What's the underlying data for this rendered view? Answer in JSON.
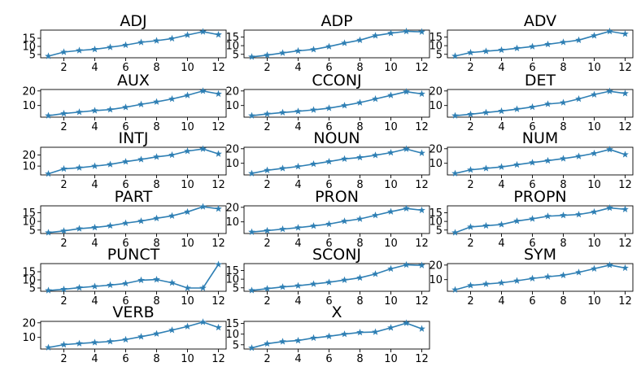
{
  "style": {
    "line_color": "#2e7fb4",
    "marker": "star"
  },
  "chart_data": [
    {
      "type": "line",
      "title": "ADJ",
      "x": [
        1,
        2,
        3,
        4,
        5,
        6,
        7,
        8,
        9,
        10,
        11,
        12
      ],
      "values": [
        4,
        6.5,
        7.5,
        8.2,
        9.5,
        10.8,
        12.5,
        13.5,
        14.8,
        17,
        19,
        17.2
      ],
      "yticks": [
        5,
        10,
        15
      ],
      "ylim": [
        3,
        20
      ],
      "xticks": [
        2,
        4,
        6,
        8,
        10,
        12
      ]
    },
    {
      "type": "line",
      "title": "ADP",
      "x": [
        1,
        2,
        3,
        4,
        5,
        6,
        7,
        8,
        9,
        10,
        11,
        12
      ],
      "values": [
        3.5,
        4.5,
        5.8,
        7,
        7.8,
        9.5,
        11.5,
        13.2,
        15.8,
        17.2,
        18.3,
        18
      ],
      "yticks": [
        5,
        10,
        15
      ],
      "ylim": [
        3,
        19
      ],
      "xticks": [
        2,
        4,
        6,
        8,
        10,
        12
      ]
    },
    {
      "type": "line",
      "title": "ADV",
      "x": [
        1,
        2,
        3,
        4,
        5,
        6,
        7,
        8,
        9,
        10,
        11,
        12
      ],
      "values": [
        4,
        6,
        6.8,
        7.5,
        8.5,
        9.5,
        10.8,
        12,
        13.2,
        15.8,
        18.3,
        16.8
      ],
      "yticks": [
        5,
        10,
        15
      ],
      "ylim": [
        3,
        19
      ],
      "xticks": [
        2,
        4,
        6,
        8,
        10,
        12
      ]
    },
    {
      "type": "line",
      "title": "AUX",
      "x": [
        1,
        2,
        3,
        4,
        5,
        6,
        7,
        8,
        9,
        10,
        11,
        12
      ],
      "values": [
        3,
        4.5,
        5.5,
        6.5,
        7.2,
        8.8,
        10.8,
        12.5,
        14.5,
        17,
        20,
        18
      ],
      "yticks": [
        10,
        20
      ],
      "ylim": [
        2,
        21
      ],
      "xticks": [
        2,
        4,
        6,
        8,
        10,
        12
      ]
    },
    {
      "type": "line",
      "title": "CCONJ",
      "x": [
        1,
        2,
        3,
        4,
        5,
        6,
        7,
        8,
        9,
        10,
        11,
        12
      ],
      "values": [
        3,
        4.2,
        5.2,
        6,
        7,
        8.2,
        10,
        12,
        14.5,
        17,
        19.5,
        18
      ],
      "yticks": [
        10,
        20
      ],
      "ylim": [
        2,
        21
      ],
      "xticks": [
        2,
        4,
        6,
        8,
        10,
        12
      ]
    },
    {
      "type": "line",
      "title": "DET",
      "x": [
        1,
        2,
        3,
        4,
        5,
        6,
        7,
        8,
        9,
        10,
        11,
        12
      ],
      "values": [
        3,
        4,
        5.2,
        6.2,
        7.5,
        9,
        11,
        12,
        14.5,
        17.5,
        19.8,
        18.3
      ],
      "yticks": [
        10,
        20
      ],
      "ylim": [
        2,
        21
      ],
      "xticks": [
        2,
        4,
        6,
        8,
        10,
        12
      ]
    },
    {
      "type": "line",
      "title": "INTJ",
      "x": [
        1,
        2,
        3,
        4,
        5,
        6,
        7,
        8,
        9,
        10,
        11,
        12
      ],
      "values": [
        3,
        7.5,
        8.5,
        10,
        11.5,
        14,
        16,
        18.3,
        20,
        23.5,
        25.5,
        21
      ],
      "yticks": [
        10,
        20
      ],
      "ylim": [
        2,
        27
      ],
      "xticks": [
        2,
        4,
        6,
        8,
        10,
        12
      ]
    },
    {
      "type": "line",
      "title": "NOUN",
      "x": [
        1,
        2,
        3,
        4,
        5,
        6,
        7,
        8,
        9,
        10,
        11,
        12
      ],
      "values": [
        3,
        5.2,
        6.5,
        7.8,
        9.5,
        11.2,
        13,
        14,
        15.5,
        17.3,
        19.8,
        17
      ],
      "yticks": [
        10,
        20
      ],
      "ylim": [
        2,
        21
      ],
      "xticks": [
        2,
        4,
        6,
        8,
        10,
        12
      ]
    },
    {
      "type": "line",
      "title": "NUM",
      "x": [
        1,
        2,
        3,
        4,
        5,
        6,
        7,
        8,
        9,
        10,
        11,
        12
      ],
      "values": [
        3,
        5.5,
        6.5,
        7.5,
        9,
        10.5,
        11.8,
        13.2,
        14.8,
        16.8,
        19.5,
        16
      ],
      "yticks": [
        10,
        20
      ],
      "ylim": [
        2,
        21
      ],
      "xticks": [
        2,
        4,
        6,
        8,
        10,
        12
      ]
    },
    {
      "type": "line",
      "title": "PART",
      "x": [
        1,
        2,
        3,
        4,
        5,
        6,
        7,
        8,
        9,
        10,
        11,
        12
      ],
      "values": [
        3.5,
        4.5,
        5.8,
        6.5,
        7.5,
        9,
        10.2,
        11.8,
        13.2,
        15.5,
        18.5,
        17.3
      ],
      "yticks": [
        5,
        10,
        15
      ],
      "ylim": [
        3,
        19
      ],
      "xticks": [
        2,
        4,
        6,
        8,
        10,
        12
      ]
    },
    {
      "type": "line",
      "title": "PRON",
      "x": [
        1,
        2,
        3,
        4,
        5,
        6,
        7,
        8,
        9,
        10,
        11,
        12
      ],
      "values": [
        3,
        4,
        5,
        6,
        7.2,
        8.5,
        10.5,
        12,
        14.5,
        17,
        19.2,
        18
      ],
      "yticks": [
        10,
        20
      ],
      "ylim": [
        2,
        21
      ],
      "xticks": [
        2,
        4,
        6,
        8,
        10,
        12
      ]
    },
    {
      "type": "line",
      "title": "PROPN",
      "x": [
        1,
        2,
        3,
        4,
        5,
        6,
        7,
        8,
        9,
        10,
        11,
        12
      ],
      "values": [
        3.5,
        6.8,
        7.5,
        8.2,
        10.2,
        11.5,
        13,
        13.5,
        14,
        15.5,
        17.8,
        17
      ],
      "yticks": [
        5,
        10,
        15
      ],
      "ylim": [
        3,
        19
      ],
      "xticks": [
        2,
        4,
        6,
        8,
        10,
        12
      ]
    },
    {
      "type": "line",
      "title": "PUNCT",
      "x": [
        1,
        2,
        3,
        4,
        5,
        6,
        7,
        8,
        9,
        10,
        11,
        12
      ],
      "values": [
        3.5,
        4.2,
        5.2,
        6,
        6.8,
        7.8,
        9.8,
        10.2,
        8.2,
        5,
        5,
        19.5
      ],
      "yticks": [
        5,
        10,
        15
      ],
      "ylim": [
        3,
        20
      ],
      "xticks": [
        2,
        4,
        6,
        8,
        10,
        12
      ]
    },
    {
      "type": "line",
      "title": "SCONJ",
      "x": [
        1,
        2,
        3,
        4,
        5,
        6,
        7,
        8,
        9,
        10,
        11,
        12
      ],
      "values": [
        3.5,
        4.5,
        5.5,
        6.2,
        7.2,
        8.2,
        9.5,
        10.8,
        13,
        16,
        18.3,
        18
      ],
      "yticks": [
        5,
        10,
        15
      ],
      "ylim": [
        3,
        19
      ],
      "xticks": [
        2,
        4,
        6,
        8,
        10,
        12
      ]
    },
    {
      "type": "line",
      "title": "SYM",
      "x": [
        1,
        2,
        3,
        4,
        5,
        6,
        7,
        8,
        9,
        10,
        11,
        12
      ],
      "values": [
        3,
        6,
        7,
        7.8,
        9.2,
        10.8,
        12,
        13,
        15,
        17.5,
        20,
        18
      ],
      "yticks": [
        10,
        20
      ],
      "ylim": [
        2,
        21
      ],
      "xticks": [
        2,
        4,
        6,
        8,
        10,
        12
      ]
    },
    {
      "type": "line",
      "title": "VERB",
      "x": [
        1,
        2,
        3,
        4,
        5,
        6,
        7,
        8,
        9,
        10,
        11,
        12
      ],
      "values": [
        3,
        5,
        5.8,
        6.5,
        7.2,
        8.5,
        10.5,
        12.5,
        15,
        17.5,
        20.5,
        16.8
      ],
      "yticks": [
        10,
        20
      ],
      "ylim": [
        2,
        21
      ],
      "xticks": [
        2,
        4,
        6,
        8,
        10,
        12
      ]
    },
    {
      "type": "line",
      "title": "X",
      "x": [
        1,
        2,
        3,
        4,
        5,
        6,
        7,
        8,
        9,
        10,
        11,
        12
      ],
      "values": [
        3.5,
        5.5,
        6.5,
        7,
        8.2,
        9,
        10,
        10.8,
        11,
        13,
        15.2,
        12.5
      ],
      "yticks": [
        5,
        10,
        15
      ],
      "ylim": [
        3,
        16
      ],
      "xticks": [
        2,
        4,
        6,
        8,
        10,
        12
      ]
    }
  ]
}
